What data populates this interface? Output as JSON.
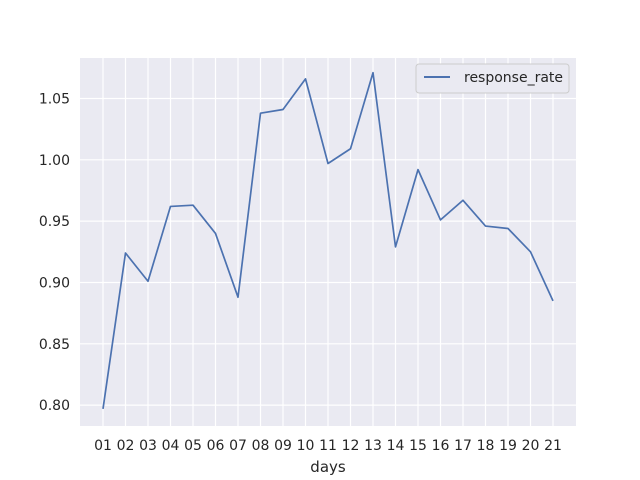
{
  "chart_data": {
    "type": "line",
    "xlabel": "days",
    "ylabel": "",
    "categories": [
      "01",
      "02",
      "03",
      "04",
      "05",
      "06",
      "07",
      "08",
      "09",
      "10",
      "11",
      "12",
      "13",
      "14",
      "15",
      "16",
      "17",
      "18",
      "19",
      "20",
      "21"
    ],
    "series": [
      {
        "name": "response_rate",
        "color": "#4c72b0",
        "values": [
          0.797,
          0.924,
          0.901,
          0.962,
          0.963,
          0.94,
          0.888,
          1.038,
          1.041,
          1.066,
          0.997,
          1.009,
          1.071,
          0.929,
          0.992,
          0.951,
          0.967,
          0.946,
          0.944,
          0.925,
          0.885
        ]
      }
    ],
    "ylim": [
      0.783,
      1.083
    ],
    "yticks": [
      0.8,
      0.85,
      0.9,
      0.95,
      1.0,
      1.05
    ],
    "ytick_labels": [
      "0.80",
      "0.85",
      "0.90",
      "0.95",
      "1.00",
      "1.05"
    ],
    "grid": true,
    "legend_position": "top-right",
    "background_color": "#eaeaf2",
    "grid_color": "#ffffff"
  }
}
